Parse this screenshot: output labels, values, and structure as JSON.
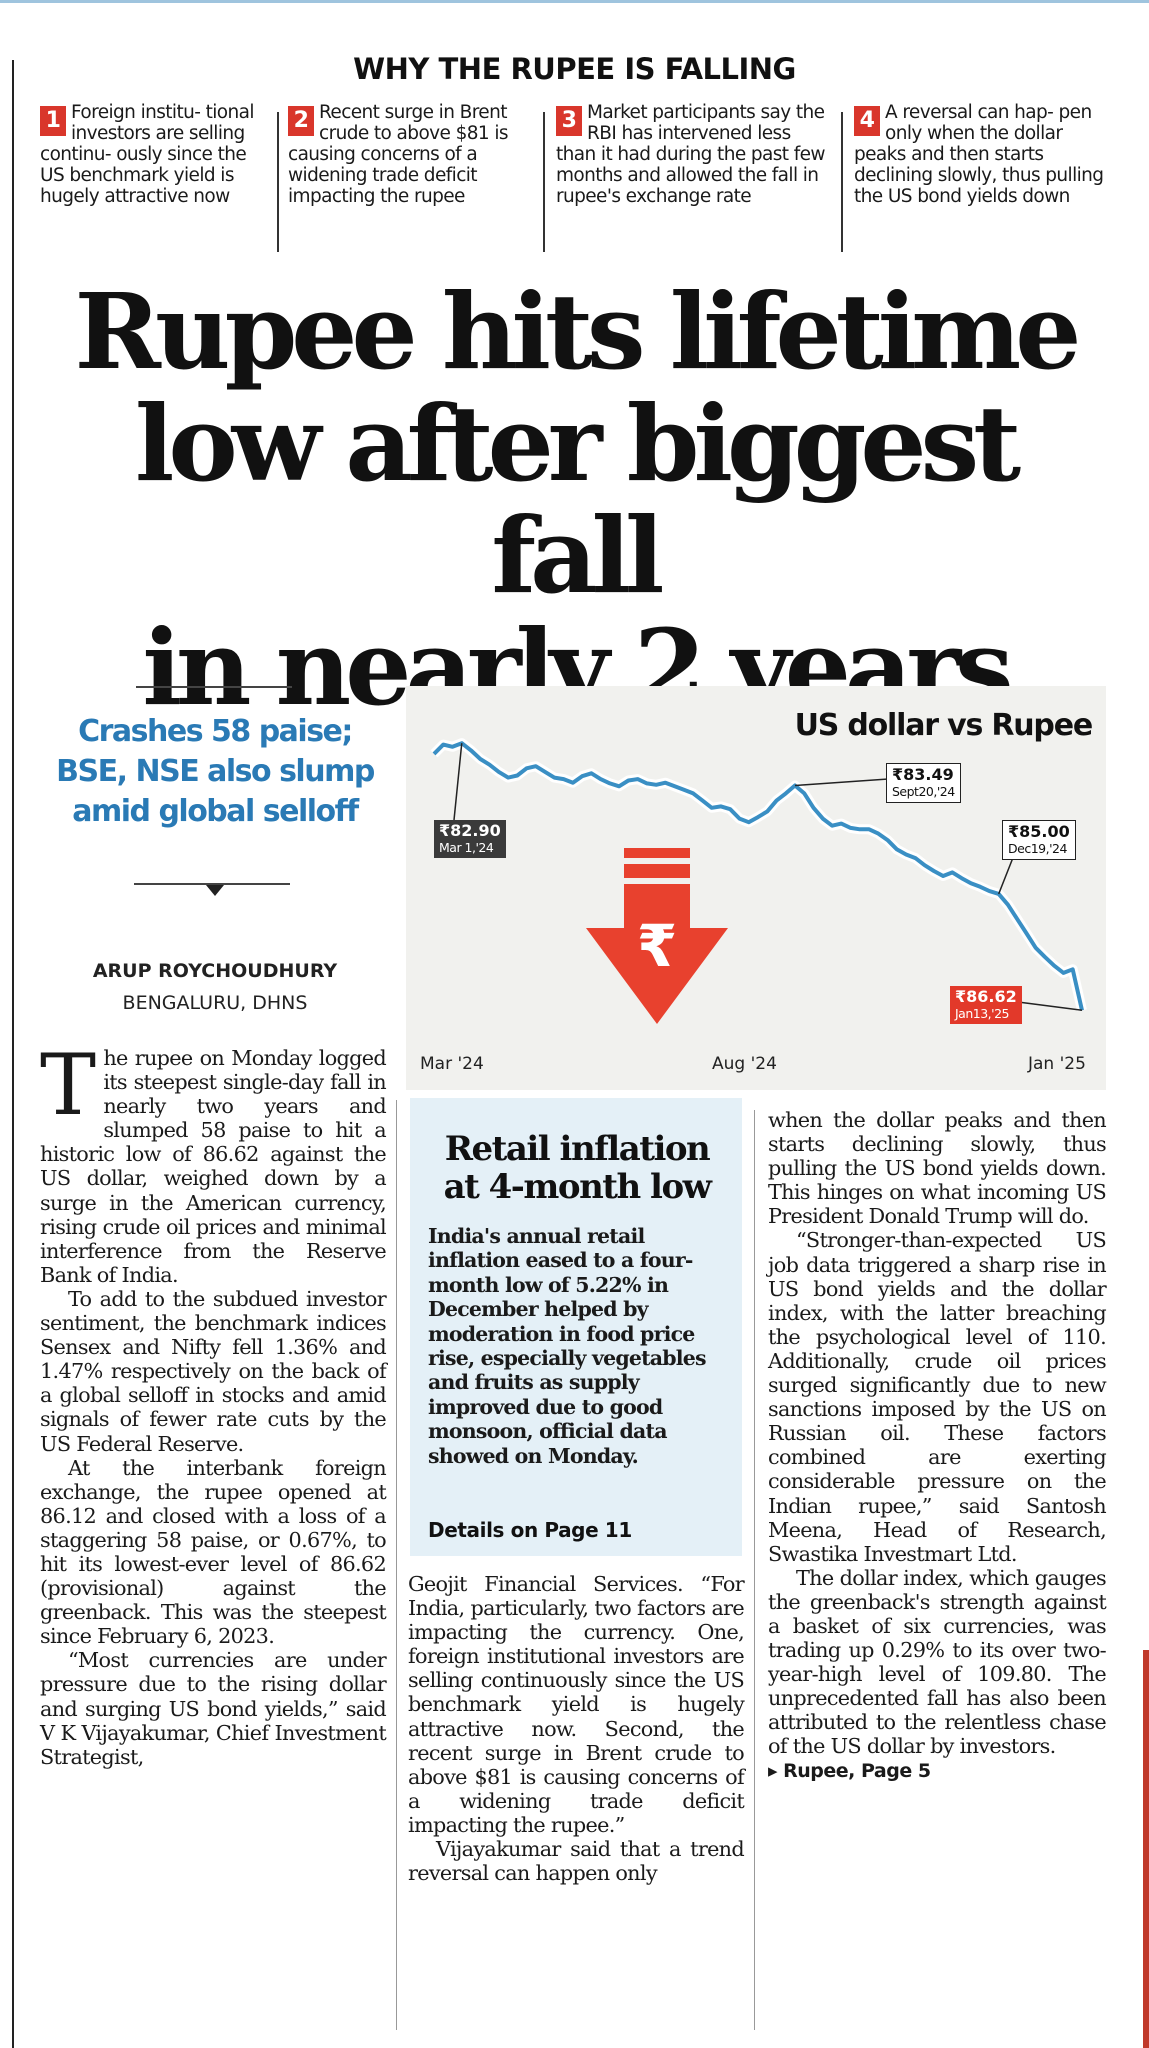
{
  "why_box": {
    "title": "WHY THE RUPEE IS FALLING",
    "points": [
      {
        "num": "1",
        "text": "Foreign institu- tional investors are selling continu- ously since the US benchmark yield is hugely attractive now"
      },
      {
        "num": "2",
        "text": "Recent surge in Brent crude to above $81 is causing concerns of a widening trade deficit impacting the rupee"
      },
      {
        "num": "3",
        "text": "Market participants say the RBI has intervened less than it had during the past few months and allowed the fall in rupee's exchange rate"
      },
      {
        "num": "4",
        "text": "A reversal can hap- pen only when the dollar peaks and then starts declining slowly, thus pulling the US bond yields down"
      }
    ],
    "accent_color": "#d9362b"
  },
  "headline": {
    "line1": "Rupee hits lifetime",
    "line2": "low after biggest fall",
    "line3": "in nearly 2 years"
  },
  "subhead": {
    "line1": "Crashes 58 paise;",
    "line2": "BSE, NSE also slump",
    "line3": "amid global selloff",
    "color": "#2a7ab5"
  },
  "byline": {
    "author": "ARUP ROYCHOUDHURY",
    "place": "BENGALURU, DHNS"
  },
  "chart_data": {
    "type": "line",
    "title": "US dollar vs Rupee",
    "x_ticks": [
      "Mar '24",
      "Aug '24",
      "Jan '25"
    ],
    "series": [
      {
        "values": [
          83.05,
          82.92,
          82.95,
          82.9,
          83.0,
          83.12,
          83.2,
          83.3,
          83.38,
          83.35,
          83.25,
          83.22,
          83.3,
          83.38,
          83.4,
          83.45,
          83.36,
          83.32,
          83.4,
          83.46,
          83.5,
          83.42,
          83.4,
          83.46,
          83.48,
          83.45,
          83.5,
          83.55,
          83.6,
          83.7,
          83.8,
          83.78,
          83.82,
          83.95,
          84.0,
          83.93,
          83.85,
          83.7,
          83.6,
          83.49,
          83.6,
          83.8,
          83.95,
          84.05,
          84.02,
          84.08,
          84.1,
          84.1,
          84.16,
          84.25,
          84.38,
          84.45,
          84.5,
          84.6,
          84.68,
          84.75,
          84.7,
          84.78,
          84.85,
          84.9,
          84.96,
          85.0,
          85.15,
          85.35,
          85.55,
          85.75,
          85.88,
          86.0,
          86.1,
          86.05,
          86.62
        ]
      }
    ],
    "annotations": [
      {
        "value": "₹82.90",
        "date": "Mar 1,'24"
      },
      {
        "value": "₹83.49",
        "date": "Sept20,'24"
      },
      {
        "value": "₹85.00",
        "date": "Dec19,'24"
      },
      {
        "value": "₹86.62",
        "date": "Jan13,'25"
      }
    ],
    "line_color": "#3a8fc4",
    "arrow_color": "#e8412e"
  },
  "article": {
    "dropcap": "T",
    "col1": [
      "he rupee on Monday logged its steepest single-day fall in nearly two years and slumped 58 paise to hit a historic low of 86.62 against the US dollar, weighed down by a surge in the American currency, rising crude oil prices and minimal interference from the Reserve Bank of India.",
      "To add to the subdued investor sentiment, the benchmark indices Sensex and Nifty fell 1.36% and 1.47% respectively on the back of a global selloff in stocks and amid signals of fewer rate cuts by the US Federal Reserve.",
      "At the interbank foreign exchange, the rupee opened at 86.12 and closed with a loss of a staggering 58 paise, or 0.67%, to hit its lowest-ever level of 86.62 (provisional) against the greenback. This was the steepest since February 6, 2023.",
      "“Most currencies are under pressure due to the rising dollar and surging US bond yields,” said V K Vijayakumar, Chief Investment Strategist,"
    ],
    "col2": [
      "Geojit Financial Services. “For India, particularly, two factors are impacting the currency. One, foreign institutional investors are selling continuously since the US benchmark yield is hugely attractive now. Second, the recent surge in Brent crude to above $81 is causing concerns of a widening trade deficit impacting the rupee.”",
      "Vijayakumar said that a trend reversal can happen only"
    ],
    "col3": [
      "when the dollar peaks and then starts declining slowly, thus pulling the US bond yields down. This hinges on what incoming US President Donald Trump will do.",
      "“Stronger-than-expected US job data triggered a sharp rise in US bond yields and the dollar index, with the latter breaching the psychological level of 110. Additionally, crude oil prices surged significantly due to new sanctions imposed by the US on Russian oil. These factors combined are exerting considerable pressure on the Indian rupee,” said Santosh Meena, Head of Research, Swastika Investmart Ltd.",
      "The dollar index, which gauges the greenback's strength against a basket of six currencies, was trading up 0.29% to its over two-year-high level of 109.80. The unprecedented fall has also been attributed to the relentless chase of the US dollar by investors."
    ],
    "jump": "▸ Rupee, Page 5"
  },
  "inflation_box": {
    "title_line1": "Retail inflation",
    "title_line2": "at 4-month low",
    "body": "India's annual retail inflation eased to a four-month low of 5.22% in December helped by moderation in food price rise, especially vegetables and fruits as supply improved due to good monsoon, official data showed on Monday.",
    "link": "Details on Page 11",
    "bg_color": "#e4f0f7"
  }
}
